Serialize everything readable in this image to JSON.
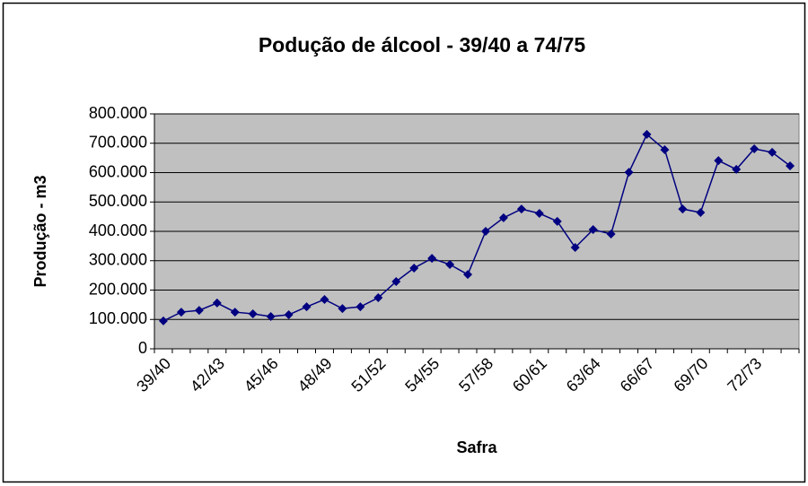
{
  "chart_data": {
    "type": "line",
    "title": "Podução de álcool - 39/40 a 74/75",
    "x_label": "Safra",
    "y_label": "Produção - m3",
    "categories": [
      "39/40",
      null,
      null,
      "42/43",
      null,
      null,
      "45/46",
      null,
      null,
      "48/49",
      null,
      null,
      "51/52",
      null,
      null,
      "54/55",
      null,
      null,
      "57/58",
      null,
      null,
      "60/61",
      null,
      null,
      "63/64",
      null,
      null,
      "66/67",
      null,
      null,
      "69/70",
      null,
      null,
      "72/73",
      null,
      null
    ],
    "series": [
      {
        "name": "Produção",
        "color": "#000080",
        "values": [
          95000,
          125000,
          131000,
          156000,
          125000,
          119000,
          110000,
          116000,
          143000,
          168000,
          137000,
          143000,
          174000,
          229000,
          275000,
          308000,
          287000,
          253000,
          400000,
          446000,
          476000,
          461000,
          434000,
          345000,
          406000,
          391000,
          601000,
          730000,
          678000,
          476000,
          464000,
          641000,
          611000,
          681000,
          669000,
          623000
        ]
      }
    ],
    "ylim": [
      0,
      800000
    ],
    "yticks": [
      0,
      {
        "value": 100000,
        "label": "100.000"
      },
      {
        "value": 200000,
        "label": "200.000"
      },
      {
        "value": 300000,
        "label": "300.000"
      },
      {
        "value": 400000,
        "label": "400.000"
      },
      {
        "value": 500000,
        "label": "500.000"
      },
      {
        "value": 600000,
        "label": "600.000"
      },
      {
        "value": 700000,
        "label": "700.000"
      },
      {
        "value": 800000,
        "label": "800.000"
      }
    ],
    "grid": true,
    "plot_background": "#c0c0c0"
  }
}
